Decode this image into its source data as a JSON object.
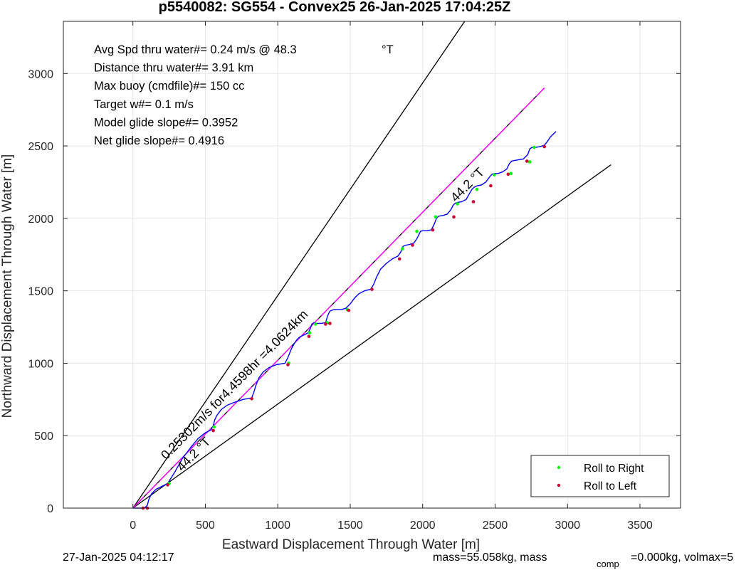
{
  "chart_data": {
    "type": "line",
    "title": "p5540082: SG554 - Convex25 26-Jan-2025 17:04:25Z",
    "xlabel": "Eastward Displacement Through Water [m]",
    "ylabel": "Northward Displacement Through Water [m]",
    "xlim": [
      -480,
      3780
    ],
    "ylim": [
      0,
      3360
    ],
    "xticks": [
      0,
      500,
      1000,
      1500,
      2000,
      2500,
      3000,
      3500
    ],
    "yticks": [
      0,
      500,
      1000,
      1500,
      2000,
      2500,
      3000
    ],
    "grid": true,
    "info_lines": [
      "Avg Spd thru water#=  0.24 m/s @  48.3",
      "Distance thru water#=  3.91 km",
      "Max buoy (cmdfile)#= 150 cc",
      "Target w#= 0.1 m/s",
      "Model glide slope#= 0.3952",
      "Net glide slope#= 0.4916"
    ],
    "info_degree_unit": "°T",
    "annotations": [
      {
        "text": "0.25302m/s for4.4598hr =4.0624km",
        "x": 230,
        "y": 330
      },
      {
        "text": "44.2 °T",
        "x": 340,
        "y": 250
      },
      {
        "text": "44.2 °T",
        "x": 2230,
        "y": 2110
      }
    ],
    "bounds_lines": [
      {
        "name": "upper bound",
        "x": [
          0,
          2290
        ],
        "y": [
          0,
          3360
        ]
      },
      {
        "name": "lower bound",
        "x": [
          0,
          3300
        ],
        "y": [
          0,
          2370
        ]
      },
      {
        "name": "heading line",
        "x": [
          0,
          2840
        ],
        "y": [
          0,
          2900
        ]
      }
    ],
    "track": {
      "x": [
        0,
        80,
        100,
        110,
        130,
        160,
        200,
        240,
        290,
        340,
        400,
        450,
        500,
        540,
        555,
        565,
        580,
        610,
        650,
        700,
        760,
        820,
        835,
        850,
        870,
        900,
        940,
        990,
        1050,
        1070,
        1090,
        1110,
        1130,
        1150,
        1170,
        1190,
        1210,
        1225,
        1235,
        1250,
        1270,
        1300,
        1330,
        1345,
        1360,
        1385,
        1410,
        1440,
        1470,
        1500,
        1530,
        1560,
        1600,
        1640,
        1660,
        1680,
        1710,
        1750,
        1790,
        1830,
        1850,
        1860,
        1870,
        1885,
        1910,
        1940,
        1960,
        1975,
        1985,
        2000,
        2030,
        2060,
        2080,
        2095,
        2110,
        2140,
        2170,
        2195,
        2210,
        2225,
        2240,
        2270,
        2300,
        2325,
        2340,
        2355,
        2375,
        2405,
        2435,
        2465,
        2480,
        2495,
        2520,
        2550,
        2580,
        2600,
        2615,
        2635,
        2665,
        2695,
        2725,
        2740,
        2755,
        2780,
        2810,
        2840,
        2860,
        2880,
        2900,
        2920
      ],
      "y": [
        0,
        0,
        20,
        60,
        100,
        130,
        150,
        170,
        250,
        340,
        420,
        480,
        520,
        540,
        570,
        610,
        640,
        680,
        710,
        730,
        750,
        760,
        800,
        850,
        900,
        940,
        970,
        990,
        1000,
        1040,
        1090,
        1130,
        1160,
        1180,
        1190,
        1200,
        1210,
        1240,
        1270,
        1280,
        1275,
        1275,
        1280,
        1330,
        1360,
        1370,
        1370,
        1370,
        1380,
        1410,
        1450,
        1480,
        1500,
        1510,
        1540,
        1590,
        1650,
        1690,
        1720,
        1740,
        1770,
        1800,
        1810,
        1815,
        1820,
        1830,
        1860,
        1890,
        1910,
        1915,
        1915,
        1920,
        1960,
        2000,
        2015,
        2020,
        2030,
        2060,
        2090,
        2105,
        2110,
        2115,
        2130,
        2175,
        2200,
        2215,
        2225,
        2230,
        2250,
        2290,
        2305,
        2310,
        2310,
        2320,
        2340,
        2380,
        2395,
        2400,
        2405,
        2410,
        2440,
        2480,
        2490,
        2490,
        2495,
        2505,
        2530,
        2560,
        2580,
        2600
      ]
    },
    "roll_right": {
      "x": [
        250,
        560,
        1075,
        1220,
        1260,
        1340,
        1480,
        1860,
        1960,
        2090,
        2240,
        2375,
        2495,
        2610,
        2740,
        2770
      ],
      "y": [
        170,
        560,
        1000,
        1210,
        1270,
        1280,
        1370,
        1790,
        1910,
        2010,
        2100,
        2200,
        2300,
        2310,
        2390,
        2490
      ]
    },
    "roll_left": {
      "x": [
        70,
        100,
        240,
        555,
        820,
        1070,
        1215,
        1330,
        1360,
        1490,
        1650,
        1840,
        1930,
        2070,
        2215,
        2350,
        2470,
        2590,
        2720,
        2840
      ],
      "y": [
        0,
        0,
        160,
        535,
        755,
        990,
        1185,
        1270,
        1275,
        1365,
        1510,
        1720,
        1815,
        1920,
        2010,
        2115,
        2225,
        2305,
        2395,
        2495
      ]
    },
    "legend": {
      "placement": "bottom-right",
      "entries": [
        {
          "label": "Roll to Right",
          "color": "#00ff00"
        },
        {
          "label": "Roll to Left",
          "color": "#cc0033"
        }
      ]
    },
    "colors": {
      "track": "#0000ff",
      "heading_line": "#ff00ff",
      "bounds": "#000000",
      "grid": "#e6e6e6"
    }
  },
  "footer": {
    "timestamp": "27-Jan-2025 04:12:17",
    "mass_text": "mass=55.058kg, mass",
    "mass_sub": "comp",
    "mass_tail": "=0.000kg, volmax=5"
  }
}
